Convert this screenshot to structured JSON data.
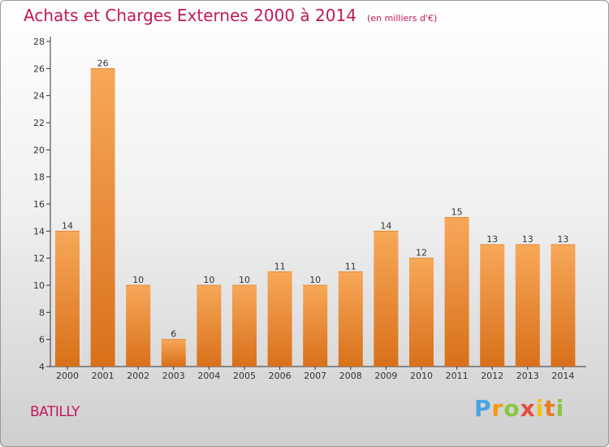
{
  "title": "Achats et Charges Externes 2000 à 2014",
  "unit_note": "(en milliers d'€)",
  "location": "BATILLY",
  "brand": {
    "letters": [
      "P",
      "r",
      "o",
      "x",
      "i",
      "t",
      "i"
    ],
    "colors": [
      "#4aa3df",
      "#f39c12",
      "#8cc63f",
      "#e74c3c",
      "#f1c40f",
      "#e67e22",
      "#8cc63f"
    ]
  },
  "colors": {
    "bar_top": "#f7a859",
    "bar_bottom": "#d9701a",
    "title": "#c2185b",
    "grid": "#e0e0e0"
  },
  "chart_data": {
    "type": "bar",
    "title": "Achats et Charges Externes 2000 à 2014",
    "subtitle": "(en milliers d'€)",
    "xlabel": "",
    "ylabel": "",
    "categories": [
      "2000",
      "2001",
      "2002",
      "2003",
      "2004",
      "2005",
      "2006",
      "2007",
      "2008",
      "2009",
      "2010",
      "2011",
      "2012",
      "2013",
      "2014"
    ],
    "values": [
      14,
      26,
      10,
      6,
      10,
      10,
      11,
      10,
      11,
      14,
      12,
      15,
      13,
      13,
      13
    ],
    "ylim": [
      4,
      28
    ],
    "yticks": [
      4,
      6,
      8,
      10,
      12,
      14,
      16,
      18,
      20,
      22,
      24,
      26,
      28
    ],
    "grid": false,
    "data_labels": true
  }
}
